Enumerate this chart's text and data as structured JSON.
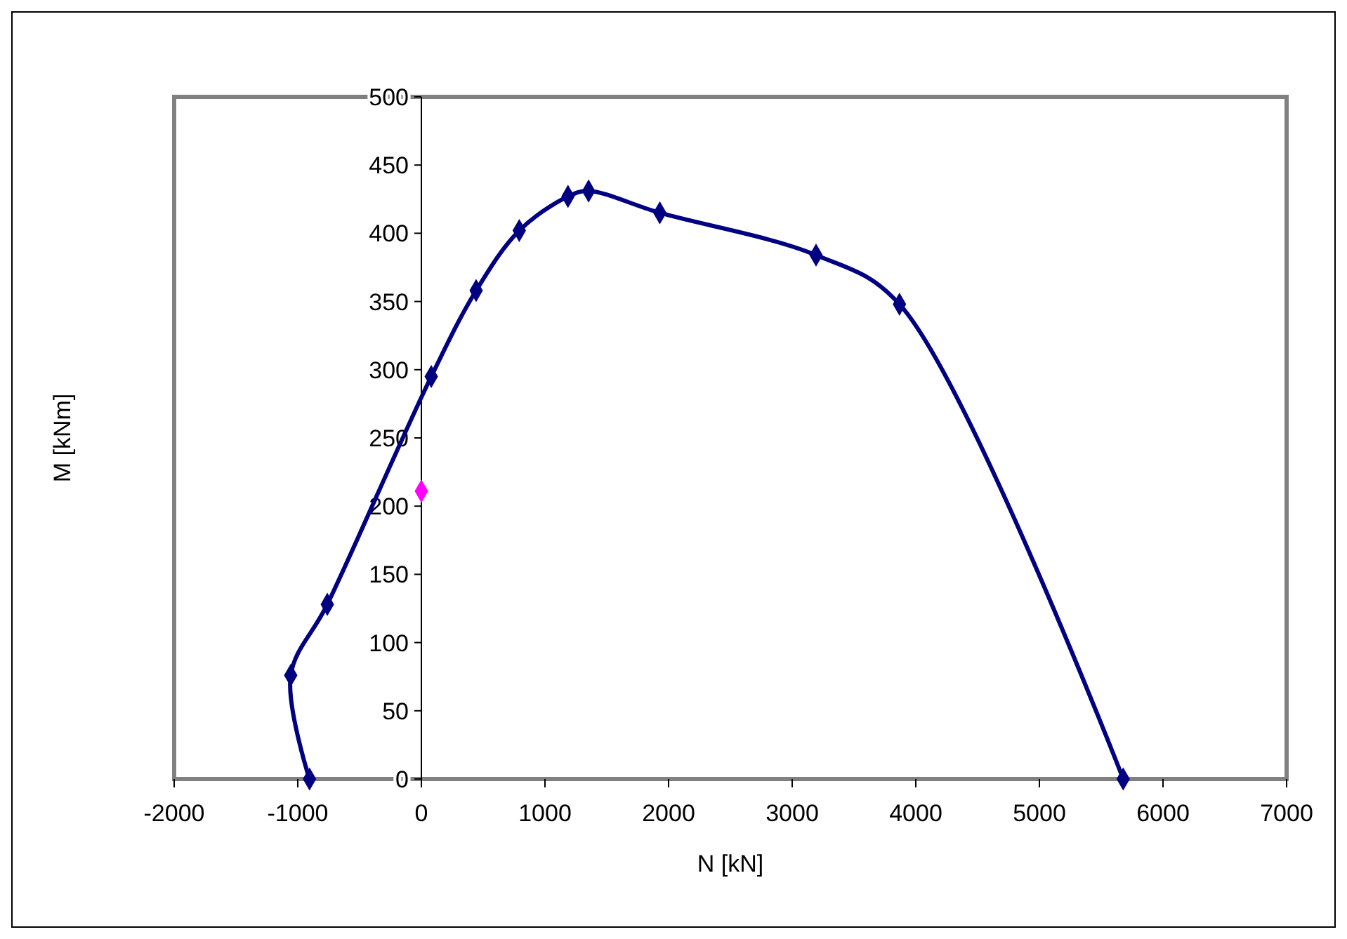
{
  "chart_data": {
    "type": "line",
    "xlabel": "N [kN]",
    "ylabel": "M [kNm]",
    "xlim": [
      -2000,
      7000
    ],
    "xticks": [
      -2000,
      -1000,
      0,
      1000,
      2000,
      3000,
      4000,
      5000,
      6000,
      7000
    ],
    "ylim": [
      0,
      500
    ],
    "yticks": [
      0,
      50,
      100,
      150,
      200,
      250,
      300,
      350,
      400,
      450,
      500
    ],
    "grid": false,
    "marker": "diamond",
    "line_style": "solid",
    "series": [
      {
        "color": "#000080",
        "x": [
          -905,
          -1057,
          -761,
          80,
          443,
          792,
          1186,
          1353,
          1929,
          3193,
          3868,
          5678
        ],
        "values": [
          0,
          76,
          128,
          295,
          358,
          402,
          427,
          431,
          415,
          384,
          348,
          0
        ]
      },
      {
        "type": "scatter",
        "color": "#ff00ff",
        "x": [
          0
        ],
        "values": [
          211
        ]
      }
    ]
  }
}
